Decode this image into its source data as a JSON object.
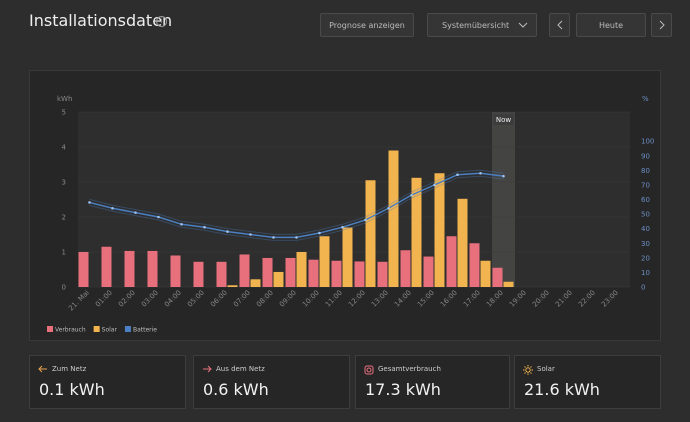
{
  "header": {
    "title": "Installationsdaten",
    "buttons": [
      "Prognose anzeigen",
      "Systemübersicht",
      "Heute"
    ]
  },
  "chart_data": {
    "type": "bar",
    "categories": [
      "21. Mai",
      "01:00",
      "02:00",
      "03:00",
      "04:00",
      "05:00",
      "06:00",
      "07:00",
      "08:00",
      "09:00",
      "10:00",
      "11:00",
      "12:00",
      "13:00",
      "14:00",
      "15:00",
      "16:00",
      "17:00",
      "18:00",
      "19:00",
      "20:00",
      "21:00",
      "22:00",
      "23:00"
    ],
    "series": [
      {
        "name": "Verbrauch",
        "color": "#e8707d",
        "values": [
          1.0,
          1.15,
          1.03,
          1.03,
          0.9,
          0.72,
          0.72,
          0.93,
          0.83,
          0.83,
          0.78,
          0.75,
          0.73,
          0.72,
          1.05,
          0.87,
          1.45,
          1.25,
          0.55,
          null,
          null,
          null,
          null,
          null
        ]
      },
      {
        "name": "Solar",
        "color": "#f2b44e",
        "values": [
          0,
          0,
          0,
          0,
          0,
          0,
          0.05,
          0.22,
          0.43,
          1.0,
          1.45,
          1.7,
          3.05,
          3.9,
          3.12,
          3.25,
          2.52,
          0.75,
          0.15,
          null,
          null,
          null,
          null,
          null
        ]
      },
      {
        "name": "Batterie",
        "color": "#4a7fc1",
        "type": "line",
        "axis": "y2",
        "values": [
          58,
          54,
          51,
          48,
          43,
          41,
          38,
          36,
          34,
          34,
          37,
          41,
          46,
          54,
          63,
          70,
          77,
          78,
          76,
          null,
          null,
          null,
          null,
          null
        ]
      }
    ],
    "ylabel": "kWh",
    "y2label": "%",
    "ylim": [
      0,
      5
    ],
    "yticks": [
      0,
      1,
      2,
      3,
      4,
      5
    ],
    "y2lim": [
      0,
      120
    ],
    "y2ticks": [
      0,
      10,
      20,
      30,
      40,
      50,
      60,
      70,
      80,
      90,
      100
    ],
    "annotations": [
      {
        "text": "Now",
        "category": "18:00"
      }
    ],
    "legend": "bottom-left"
  },
  "cards": [
    {
      "label": "Zum Netz",
      "value": "0.1 kWh"
    },
    {
      "label": "Aus dem Netz",
      "value": "0.6 kWh"
    },
    {
      "label": "Gesamtverbrauch",
      "value": "17.3 kWh"
    },
    {
      "label": "Solar",
      "value": "21.6 kWh"
    }
  ]
}
